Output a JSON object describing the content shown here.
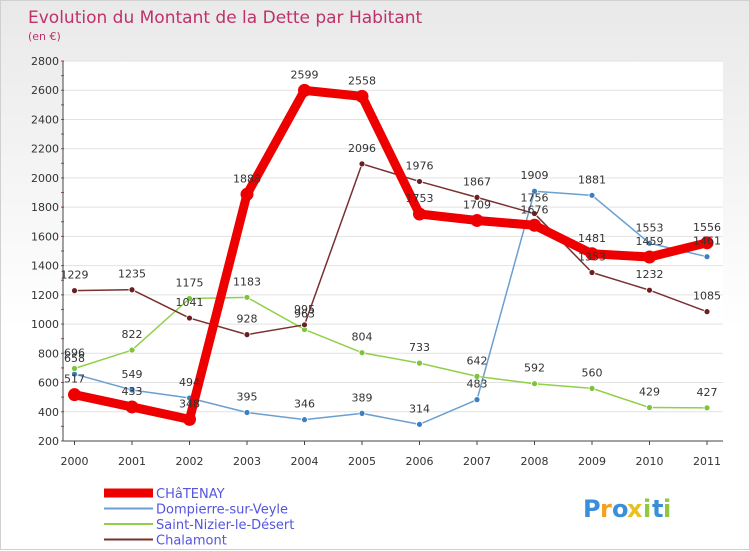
{
  "chart_data": {
    "type": "line",
    "title": "Evolution du Montant de la Dette par Habitant",
    "subtitle": "(en €)",
    "x": [
      "2000",
      "2001",
      "2002",
      "2003",
      "2004",
      "2005",
      "2006",
      "2007",
      "2008",
      "2009",
      "2010",
      "2011"
    ],
    "ylim": [
      200,
      2800
    ],
    "yticks": [
      200,
      400,
      600,
      800,
      1000,
      1200,
      1400,
      1600,
      1800,
      2000,
      2200,
      2400,
      2600,
      2800
    ],
    "grid": "horizontal",
    "legend": "bottom-left",
    "series": [
      {
        "name": "Dompierre-sur-Veyle",
        "color": "#6a9fd0",
        "marker": "#3d7fc2",
        "values": [
          658,
          549,
          494,
          395,
          346,
          389,
          314,
          483,
          1909,
          1881,
          1553,
          1461
        ],
        "labels": [
          "658",
          "549",
          "494",
          "395",
          "346",
          "389",
          "314",
          "483",
          "1909",
          "1881",
          "1553",
          "1461"
        ]
      },
      {
        "name": "Saint-Nizier-le-Désert",
        "color": "#90d048",
        "marker": "#7cc43a",
        "values": [
          696,
          822,
          1175,
          1183,
          963,
          804,
          733,
          642,
          592,
          560,
          429,
          427
        ],
        "labels": [
          "696",
          "822",
          "1175",
          "1183",
          "963",
          "804",
          "733",
          "642",
          "592",
          "560",
          "429",
          "427"
        ]
      },
      {
        "name": "Chalamont",
        "color": "#7a3030",
        "marker": "#6a2020",
        "values": [
          1229,
          1235,
          1041,
          928,
          995,
          2096,
          1976,
          1867,
          1756,
          1353,
          1232,
          1085
        ],
        "labels": [
          "1229",
          "1235",
          "1041",
          "928",
          "995",
          "2096",
          "1976",
          "1867",
          "1756",
          "1353",
          "1232",
          "1085"
        ]
      },
      {
        "name": "CHâTENAY",
        "color": "#ee0000",
        "marker": "#ee0000",
        "values": [
          517,
          433,
          348,
          1888,
          2599,
          2558,
          1753,
          1709,
          1676,
          1481,
          1459,
          1556
        ],
        "labels": [
          "517",
          "433",
          "348",
          "1888",
          "2599",
          "2558",
          "1753",
          "1709",
          "1676",
          "1481",
          "1459",
          "1556"
        ]
      }
    ],
    "legend_order": [
      3,
      0,
      1,
      2
    ]
  },
  "legend": {
    "text_color": "#5555dd"
  },
  "logo": {
    "letters": [
      "P",
      "r",
      "o",
      "x",
      "i",
      "t",
      "i"
    ],
    "colors": [
      "#3b8fd8",
      "#f5a020",
      "#3b8fd8",
      "#e8c020",
      "#90c840",
      "#3b8fd8",
      "#90c840"
    ]
  }
}
